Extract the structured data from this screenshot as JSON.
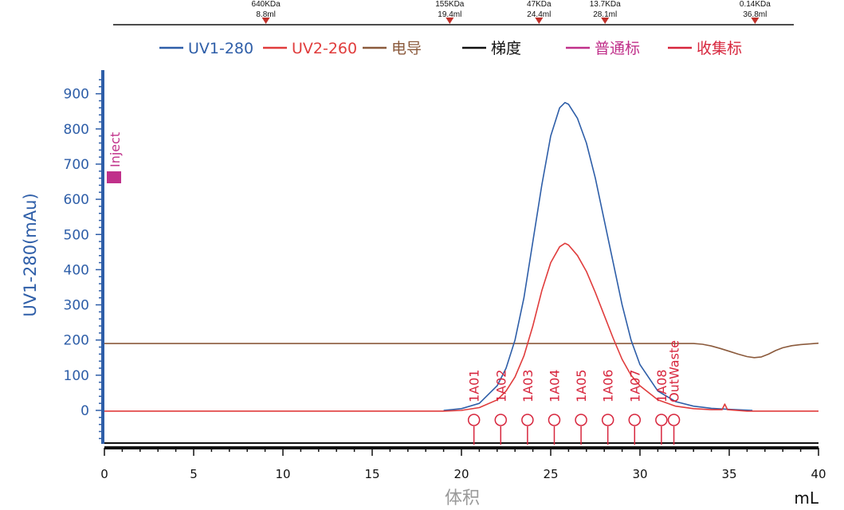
{
  "chart_data": {
    "type": "line",
    "xlabel": "体积",
    "xunit": "mL",
    "ylabel": "UV1-280(mAu)",
    "xlim": [
      0,
      40
    ],
    "ylim": [
      -90,
      950
    ],
    "x_ticks": [
      0,
      5,
      10,
      15,
      20,
      25,
      30,
      35,
      40
    ],
    "y_ticks": [
      0,
      100,
      200,
      300,
      400,
      500,
      600,
      700,
      800,
      900
    ],
    "legend_position": "top",
    "legend": [
      {
        "label": "UV1-280",
        "color": "#2e5ea8"
      },
      {
        "label": "UV2-260",
        "color": "#e03c3c"
      },
      {
        "label": "电导",
        "color": "#8b5a3c"
      },
      {
        "label": "梯度",
        "color": "#111111"
      },
      {
        "label": "普通标",
        "color": "#c0308a"
      },
      {
        "label": "收集标",
        "color": "#d7263d"
      }
    ],
    "series": [
      {
        "name": "UV1-280",
        "color": "#2e5ea8",
        "x": [
          0,
          19.0,
          20.0,
          21.0,
          22.0,
          22.5,
          23.0,
          23.5,
          24.0,
          24.5,
          25.0,
          25.5,
          25.8,
          26.0,
          26.5,
          27.0,
          27.5,
          28.0,
          28.5,
          29.0,
          29.5,
          30.0,
          31.0,
          32.0,
          33.0,
          34.0,
          35.0,
          36.3
        ],
        "y": [
          null,
          0,
          5,
          20,
          70,
          120,
          200,
          320,
          480,
          640,
          780,
          860,
          875,
          870,
          830,
          760,
          660,
          540,
          420,
          300,
          200,
          130,
          55,
          25,
          12,
          6,
          3,
          0
        ]
      },
      {
        "name": "UV2-260",
        "color": "#e03c3c",
        "x": [
          0,
          19.0,
          20.0,
          21.0,
          22.0,
          22.5,
          23.0,
          23.5,
          24.0,
          24.5,
          25.0,
          25.5,
          25.8,
          26.0,
          26.5,
          27.0,
          27.5,
          28.0,
          28.5,
          29.0,
          29.5,
          30.0,
          31.0,
          32.0,
          33.0,
          34.0,
          34.6,
          34.75,
          34.9,
          36.0,
          40.0
        ],
        "y": [
          -2,
          -2,
          0,
          8,
          30,
          55,
          95,
          155,
          240,
          340,
          420,
          465,
          475,
          470,
          440,
          395,
          335,
          270,
          205,
          145,
          100,
          70,
          30,
          12,
          5,
          2,
          2,
          18,
          2,
          -2,
          -2
        ]
      },
      {
        "name": "电导",
        "color": "#8b5a3c",
        "x": [
          0,
          33.0,
          33.5,
          34.0,
          34.5,
          35.0,
          35.5,
          36.0,
          36.4,
          36.8,
          37.2,
          37.6,
          38.0,
          38.5,
          39.0,
          39.5,
          40.0
        ],
        "y": [
          190,
          190,
          188,
          183,
          176,
          168,
          160,
          153,
          150,
          152,
          160,
          170,
          178,
          184,
          187,
          189,
          191
        ]
      }
    ],
    "markers": [
      {
        "type": "普通标",
        "label": "Inject",
        "x": 0.5,
        "color": "#c0308a"
      }
    ],
    "fractions": [
      {
        "label": "1A01",
        "x": 20.7
      },
      {
        "label": "1A02",
        "x": 22.2
      },
      {
        "label": "1A03",
        "x": 23.7
      },
      {
        "label": "1A04",
        "x": 25.2
      },
      {
        "label": "1A05",
        "x": 26.7
      },
      {
        "label": "1A06",
        "x": 28.2
      },
      {
        "label": "1A07",
        "x": 29.7
      },
      {
        "label": "1A08",
        "x": 31.2
      },
      {
        "label": "OutWaste",
        "x": 31.9
      }
    ],
    "mw_markers": [
      {
        "mw": "640KDa",
        "vol": "8.8ml",
        "x": 9.0
      },
      {
        "mw": "155KDa",
        "vol": "19.4ml",
        "x": 19.3
      },
      {
        "mw": "47KDa",
        "vol": "24.4ml",
        "x": 24.3
      },
      {
        "mw": "13.7KDa",
        "vol": "28.1ml",
        "x": 28.0
      },
      {
        "mw": "0.14KDa",
        "vol": "36.8ml",
        "x": 36.4
      }
    ]
  }
}
